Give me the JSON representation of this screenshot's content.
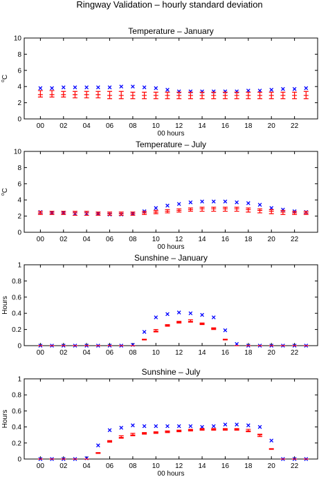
{
  "chart_title": "Ringway Validation – hourly standard deviation",
  "colors": {
    "series_x": "#0000ff",
    "series_bar": "#ff0000",
    "axis": "#000000"
  },
  "chart_data": [
    {
      "type": "scatter",
      "title": "Temperature – January",
      "xlabel": "00 hours",
      "ylabel": "oC",
      "ylabel_base": "C",
      "ylabel_sup": "o",
      "ylim": [
        0,
        10
      ],
      "yticks": [
        "0",
        "2",
        "4",
        "6",
        "8",
        "10"
      ],
      "xticks": [
        "00",
        "02",
        "04",
        "06",
        "08",
        "10",
        "12",
        "14",
        "16",
        "18",
        "20",
        "22"
      ],
      "x": [
        0,
        1,
        2,
        3,
        4,
        5,
        6,
        7,
        8,
        9,
        10,
        11,
        12,
        13,
        14,
        15,
        16,
        17,
        18,
        19,
        20,
        21,
        22,
        23
      ],
      "series": [
        {
          "marker": "x",
          "values": [
            3.8,
            3.8,
            3.9,
            3.9,
            3.9,
            3.9,
            3.9,
            4.0,
            4.0,
            3.9,
            3.8,
            3.6,
            3.4,
            3.4,
            3.4,
            3.4,
            3.4,
            3.4,
            3.5,
            3.5,
            3.6,
            3.7,
            3.7,
            3.8
          ]
        },
        {
          "marker": "errorbar",
          "values": [
            3.0,
            3.0,
            3.0,
            3.0,
            3.0,
            3.0,
            2.9,
            2.9,
            2.9,
            2.9,
            2.9,
            2.9,
            2.9,
            2.9,
            2.9,
            2.9,
            2.9,
            2.9,
            2.9,
            2.9,
            2.9,
            2.9,
            2.9,
            2.9
          ],
          "lower": [
            2.7,
            2.7,
            2.7,
            2.6,
            2.6,
            2.6,
            2.5,
            2.5,
            2.5,
            2.5,
            2.5,
            2.5,
            2.5,
            2.5,
            2.5,
            2.5,
            2.5,
            2.5,
            2.5,
            2.5,
            2.5,
            2.5,
            2.5,
            2.5
          ],
          "upper": [
            3.5,
            3.5,
            3.4,
            3.4,
            3.4,
            3.4,
            3.4,
            3.4,
            3.3,
            3.3,
            3.3,
            3.3,
            3.3,
            3.3,
            3.3,
            3.3,
            3.3,
            3.3,
            3.3,
            3.3,
            3.3,
            3.3,
            3.3,
            3.4
          ]
        }
      ]
    },
    {
      "type": "scatter",
      "title": "Temperature – July",
      "xlabel": "00 hours",
      "ylabel": "oC",
      "ylabel_base": "C",
      "ylabel_sup": "o",
      "ylim": [
        0,
        10
      ],
      "yticks": [
        "0",
        "2",
        "4",
        "6",
        "8",
        "10"
      ],
      "xticks": [
        "00",
        "02",
        "04",
        "06",
        "08",
        "10",
        "12",
        "14",
        "16",
        "18",
        "20",
        "22"
      ],
      "x": [
        0,
        1,
        2,
        3,
        4,
        5,
        6,
        7,
        8,
        9,
        10,
        11,
        12,
        13,
        14,
        15,
        16,
        17,
        18,
        19,
        20,
        21,
        22,
        23
      ],
      "series": [
        {
          "marker": "x",
          "values": [
            2.5,
            2.4,
            2.4,
            2.3,
            2.3,
            2.3,
            2.2,
            2.2,
            2.3,
            2.6,
            3.0,
            3.3,
            3.5,
            3.7,
            3.8,
            3.8,
            3.8,
            3.7,
            3.6,
            3.4,
            3.0,
            2.8,
            2.6,
            2.5
          ]
        },
        {
          "marker": "errorbar",
          "values": [
            2.4,
            2.4,
            2.4,
            2.4,
            2.4,
            2.3,
            2.3,
            2.3,
            2.3,
            2.4,
            2.5,
            2.6,
            2.7,
            2.8,
            2.9,
            2.9,
            2.9,
            2.9,
            2.8,
            2.7,
            2.6,
            2.5,
            2.4,
            2.4
          ],
          "lower": [
            2.2,
            2.2,
            2.2,
            2.1,
            2.1,
            2.1,
            2.1,
            2.1,
            2.1,
            2.2,
            2.3,
            2.4,
            2.5,
            2.6,
            2.6,
            2.6,
            2.6,
            2.6,
            2.5,
            2.4,
            2.3,
            2.2,
            2.2,
            2.2
          ],
          "upper": [
            2.6,
            2.6,
            2.6,
            2.6,
            2.6,
            2.5,
            2.5,
            2.5,
            2.5,
            2.6,
            2.7,
            2.8,
            2.9,
            3.0,
            3.1,
            3.1,
            3.1,
            3.1,
            3.0,
            2.9,
            2.8,
            2.7,
            2.6,
            2.6
          ]
        }
      ]
    },
    {
      "type": "scatter",
      "title": "Sunshine – January",
      "xlabel": "",
      "ylabel": "Hours",
      "ylim": [
        0,
        1
      ],
      "yticks": [
        "0",
        "0.2",
        "0.4",
        "0.6",
        "0.8",
        "1"
      ],
      "xticks": [
        "00",
        "02",
        "04",
        "06",
        "08",
        "10",
        "12",
        "14",
        "16",
        "18",
        "20",
        "22"
      ],
      "x": [
        0,
        1,
        2,
        3,
        4,
        5,
        6,
        7,
        8,
        9,
        10,
        11,
        12,
        13,
        14,
        15,
        16,
        17,
        18,
        19,
        20,
        21,
        22,
        23
      ],
      "series": [
        {
          "marker": "x",
          "values": [
            0,
            0,
            0,
            0,
            0,
            0,
            0,
            0,
            0.01,
            0.17,
            0.35,
            0.39,
            0.41,
            0.4,
            0.38,
            0.35,
            0.19,
            0.02,
            0,
            0,
            0,
            0,
            0,
            0
          ]
        },
        {
          "marker": "errorbar",
          "values": [
            0,
            0,
            0,
            0,
            0,
            0,
            0,
            0,
            0,
            0.07,
            0.18,
            0.25,
            0.29,
            0.3,
            0.27,
            0.21,
            0.07,
            0,
            0,
            0,
            0,
            0,
            0,
            0
          ],
          "lower": [
            0,
            0,
            0,
            0,
            0,
            0,
            0,
            0,
            0,
            0.07,
            0.17,
            0.24,
            0.28,
            0.29,
            0.26,
            0.2,
            0.07,
            0,
            0,
            0,
            0,
            0,
            0,
            0
          ],
          "upper": [
            0,
            0,
            0,
            0,
            0,
            0,
            0,
            0,
            0,
            0.08,
            0.2,
            0.26,
            0.3,
            0.32,
            0.28,
            0.22,
            0.08,
            0,
            0,
            0,
            0,
            0,
            0,
            0
          ]
        }
      ]
    },
    {
      "type": "scatter",
      "title": "Sunshine – July",
      "xlabel": "00 hours",
      "ylabel": "Hours",
      "ylim": [
        0,
        1
      ],
      "yticks": [
        "0",
        "0.2",
        "0.4",
        "0.6",
        "0.8",
        "1"
      ],
      "xticks": [
        "00",
        "02",
        "04",
        "06",
        "08",
        "10",
        "12",
        "14",
        "16",
        "18",
        "20",
        "22"
      ],
      "x": [
        0,
        1,
        2,
        3,
        4,
        5,
        6,
        7,
        8,
        9,
        10,
        11,
        12,
        13,
        14,
        15,
        16,
        17,
        18,
        19,
        20,
        21,
        22,
        23
      ],
      "series": [
        {
          "marker": "x",
          "values": [
            0,
            0,
            0,
            0,
            0.01,
            0.17,
            0.36,
            0.39,
            0.42,
            0.41,
            0.41,
            0.41,
            0.41,
            0.41,
            0.4,
            0.41,
            0.43,
            0.43,
            0.42,
            0.4,
            0.23,
            0,
            0,
            0
          ]
        },
        {
          "marker": "errorbar",
          "values": [
            0,
            0,
            0,
            0,
            0,
            0.07,
            0.22,
            0.27,
            0.3,
            0.32,
            0.33,
            0.34,
            0.35,
            0.36,
            0.37,
            0.37,
            0.37,
            0.37,
            0.35,
            0.3,
            0.12,
            0,
            0,
            0
          ],
          "lower": [
            0,
            0,
            0,
            0,
            0,
            0.07,
            0.21,
            0.26,
            0.29,
            0.31,
            0.32,
            0.33,
            0.34,
            0.35,
            0.36,
            0.36,
            0.36,
            0.36,
            0.34,
            0.28,
            0.12,
            0,
            0,
            0
          ],
          "upper": [
            0,
            0,
            0,
            0,
            0,
            0.08,
            0.23,
            0.29,
            0.32,
            0.33,
            0.34,
            0.35,
            0.36,
            0.37,
            0.38,
            0.38,
            0.38,
            0.38,
            0.37,
            0.31,
            0.13,
            0,
            0,
            0
          ]
        }
      ]
    }
  ]
}
